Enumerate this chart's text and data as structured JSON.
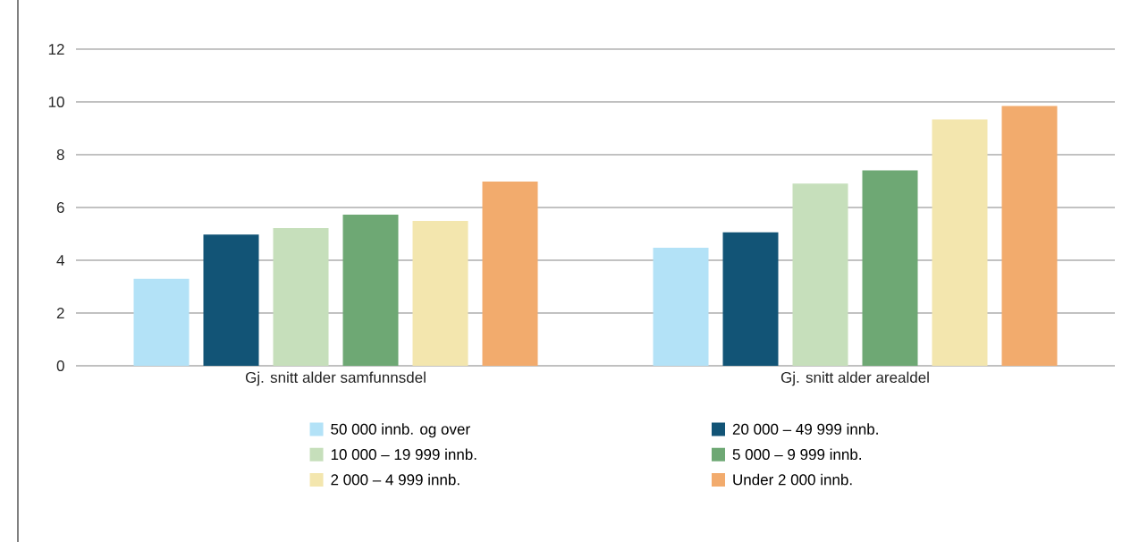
{
  "chart_data": {
    "type": "bar",
    "categories": [
      "Gj. snitt alder samfunnsdel",
      "Gj. snitt alder arealdel"
    ],
    "series": [
      {
        "name": "50 000 innb. og over",
        "color": "#b3e2f7",
        "values": [
          3.3,
          4.47
        ]
      },
      {
        "name": "20 000 – 49 999 innb.",
        "color": "#125476",
        "values": [
          4.97,
          5.06
        ]
      },
      {
        "name": "10 000 – 19 999 innb.",
        "color": "#c6dfbb",
        "values": [
          5.22,
          6.91
        ]
      },
      {
        "name": "5 000 – 9 999 innb.",
        "color": "#6ea874",
        "values": [
          5.73,
          7.41
        ]
      },
      {
        "name": "2 000 – 4 999 innb.",
        "color": "#f3e6ae",
        "values": [
          5.49,
          9.34
        ]
      },
      {
        "name": "Under 2 000 innb.",
        "color": "#f2ab6d",
        "values": [
          6.98,
          9.85
        ]
      }
    ],
    "ylim": [
      0,
      12
    ],
    "yticks": [
      0,
      2,
      4,
      6,
      8,
      10,
      12
    ],
    "grid": "y",
    "legend": "bottom"
  }
}
